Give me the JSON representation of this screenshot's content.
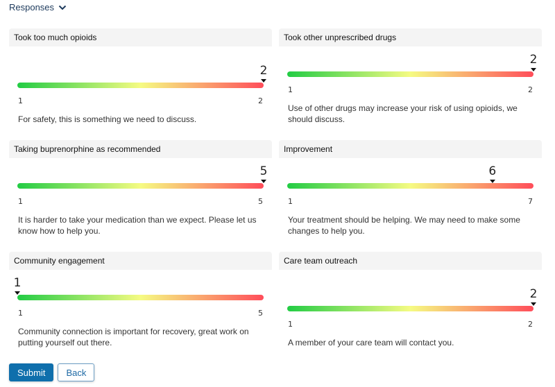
{
  "section": {
    "label": "Responses",
    "icon": "chevron-down-icon"
  },
  "cards": [
    {
      "title": "Took too much opioids",
      "value": 2,
      "min": 1,
      "max": 2,
      "message": "For safety, this is something we need to discuss."
    },
    {
      "title": "Took other unprescribed drugs",
      "value": 2,
      "min": 1,
      "max": 2,
      "message": "Use of other drugs may increase your risk of using opioids, we should discuss."
    },
    {
      "title": "Taking buprenorphine as recommended",
      "value": 5,
      "min": 1,
      "max": 5,
      "message": "It is harder to take your medication than we expect. Please let us know how to help you."
    },
    {
      "title": "Improvement",
      "value": 6,
      "min": 1,
      "max": 7,
      "message": "Your treatment should be helping. We may need to make some changes to help you."
    },
    {
      "title": "Community engagement",
      "value": 1,
      "min": 1,
      "max": 5,
      "message": "Community connection is important for recovery, great work on putting yourself out there."
    },
    {
      "title": "Care team outreach",
      "value": 2,
      "min": 1,
      "max": 2,
      "message": "A member of your care team will contact you."
    }
  ],
  "colors": {
    "gradient_start": "#22cc44",
    "gradient_mid": "#f5fb82",
    "gradient_end": "#ff4d5a",
    "primary": "#0f6fac"
  },
  "buttons": {
    "submit": "Submit",
    "back": "Back"
  }
}
